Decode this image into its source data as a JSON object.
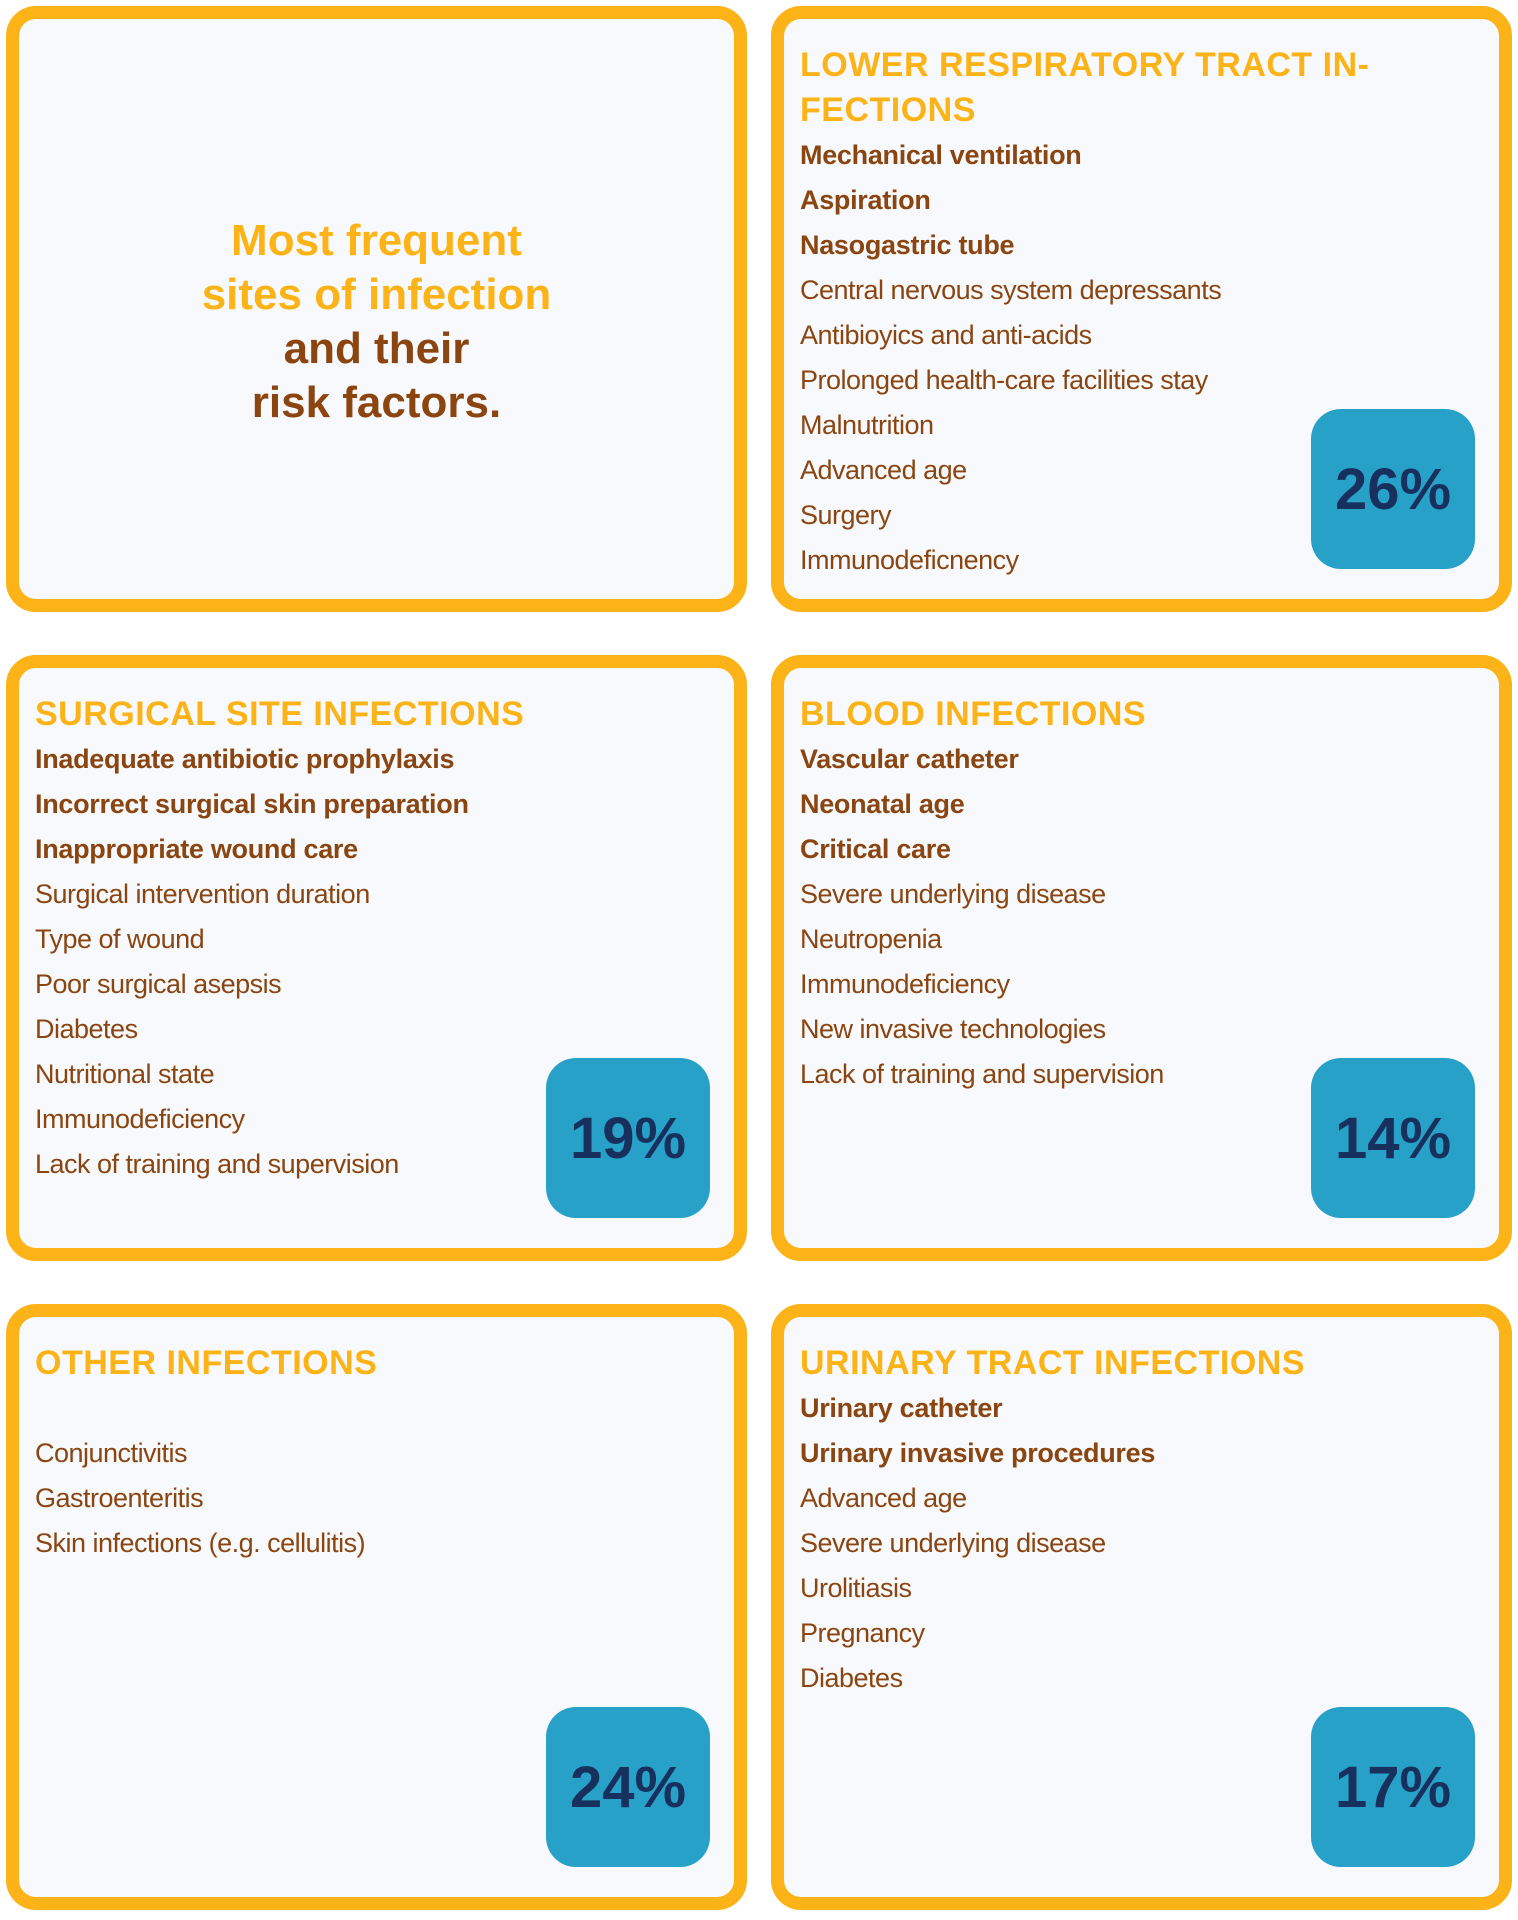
{
  "title": {
    "highlight": [
      "Most frequent",
      "sites of infection"
    ],
    "rest": [
      "and their",
      "risk factors."
    ]
  },
  "cards": [
    {
      "heading": [
        "LOWER RESPIRATORY TRACT IN-",
        "FECTIONS"
      ],
      "key_factors": [
        "Mechanical ventilation",
        "Aspiration",
        "Nasogastric tube"
      ],
      "other_factors": [
        "Central nervous system depressants",
        "Antibioyics and anti-acids",
        "Prolonged health-care facilities stay",
        "Malnutrition",
        "Advanced age",
        "Surgery",
        "Immunodeficnency"
      ],
      "share": "26%"
    },
    {
      "heading": [
        "SURGICAL SITE INFECTIONS"
      ],
      "key_factors": [
        "Inadequate antibiotic prophylaxis",
        "Incorrect surgical skin preparation",
        "Inappropriate wound care"
      ],
      "other_factors": [
        "Surgical intervention duration",
        "Type of wound",
        "Poor surgical asepsis",
        "Diabetes",
        "Nutritional state",
        "Immunodeficiency",
        "Lack of training and supervision"
      ],
      "share": "19%"
    },
    {
      "heading": [
        "BLOOD INFECTIONS"
      ],
      "key_factors": [
        "Vascular catheter",
        "Neonatal age",
        "Critical care"
      ],
      "other_factors": [
        "Severe underlying disease",
        "Neutropenia",
        "Immunodeficiency",
        "New invasive technologies",
        "Lack of training and supervision"
      ],
      "share": "14%"
    },
    {
      "heading": [
        "OTHER INFECTIONS"
      ],
      "other_factors": [
        "Conjunctivitis",
        "Gastroenteritis",
        "Skin infections (e.g. cellulitis)"
      ],
      "share": "24%"
    },
    {
      "heading": [
        "URINARY TRACT INFECTIONS"
      ],
      "key_factors": [
        "Urinary catheter",
        "Urinary invasive procedures"
      ],
      "other_factors": [
        "Advanced age",
        "Severe underlying disease",
        "Urolitiasis",
        "Pregnancy",
        "Diabetes"
      ],
      "share": "17%"
    }
  ]
}
